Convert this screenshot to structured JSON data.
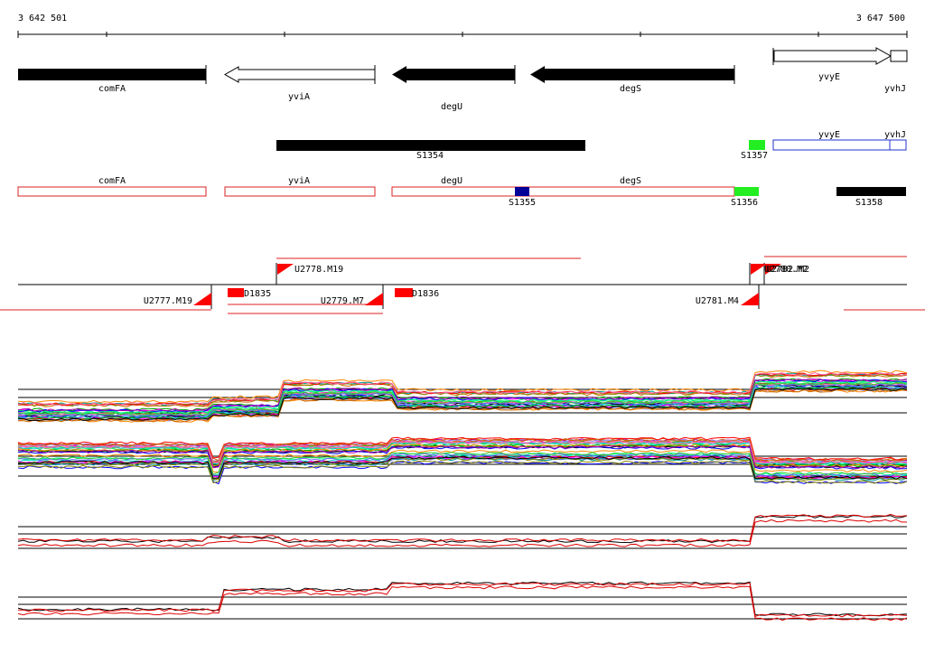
{
  "ruler": {
    "start_label": "3 642 501",
    "end_label": "3 647 500"
  },
  "colors": {
    "gene_fill": "#000000",
    "transcript_outline": "#dd2222",
    "operon_outline": "#2233cc",
    "green_segment": "#22ee22",
    "blue_segment": "#000099",
    "marker_red": "#ff0000",
    "track_line": "#000000"
  },
  "genes": {
    "comFA": "comFA",
    "yviA": "yviA",
    "degU": "degU",
    "degS": "degS",
    "yvyE": "yvyE",
    "yvhJ": "yvhJ"
  },
  "segments": {
    "S1354": "S1354",
    "S1355": "S1355",
    "S1356": "S1356",
    "S1357": "S1357",
    "S1358": "S1358"
  },
  "operons": {
    "yvyE": "yvyE",
    "yvhJ": "yvhJ",
    "comFA": "comFA",
    "yviA": "yviA",
    "degU": "degU",
    "degS": "degS"
  },
  "features": {
    "U2778_M19": "U2778.M19",
    "U2777_M19": "U2777.M19",
    "D1835": "D1835",
    "U2779_M7": "U2779.M7",
    "D1836": "D1836",
    "U2781_M4": "U2781.M4",
    "overlap_label": "U2780.M2",
    "overlap_label_2": "U2782.M2"
  }
}
